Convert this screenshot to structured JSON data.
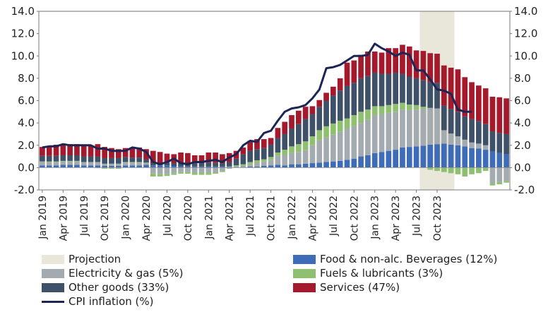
{
  "chart_data": {
    "type": "stacked-bar-with-line",
    "title": "",
    "ylim": [
      -2,
      14
    ],
    "yticks": [
      "14.0",
      "12.0",
      "10.0",
      "8.0",
      "6.0",
      "4.0",
      "2.0",
      "0.0",
      "-2.0"
    ],
    "y2ticks": [
      "14.0",
      "12.0",
      "10.0",
      "8.0",
      "6.0",
      "4.0",
      "2.0",
      "0.0",
      "-2.0"
    ],
    "start": "Jan 2019",
    "x_tick_labels": [
      "Jan 2019",
      "Apr 2019",
      "Jul 2019",
      "Oct 2019",
      "Jan 2020",
      "Apr 2020",
      "Jul 2020",
      "Oct 2020",
      "Jan 2021",
      "Apr 2021",
      "Jul 2021",
      "Oct 2021",
      "Jan 2022",
      "Apr 2022",
      "Jul 2022",
      "Oct 2022",
      "Jan 2023",
      "Apr 2023",
      "Jul 2023",
      "Oct 2023"
    ],
    "projection": {
      "label": "Projection",
      "start_index": 55,
      "end_index": 59
    },
    "series": [
      {
        "name": "Food & non-alc. Beverages (12%)",
        "color": "#3f6cb8",
        "values": [
          0.2,
          0.2,
          0.2,
          0.25,
          0.25,
          0.25,
          0.2,
          0.2,
          0.2,
          0.15,
          0.15,
          0.15,
          0.2,
          0.2,
          0.2,
          0.25,
          0.2,
          0.2,
          0.2,
          0.15,
          0.15,
          0.1,
          0.1,
          0.1,
          0.1,
          0.1,
          0.1,
          0.05,
          0.05,
          0.05,
          0.1,
          0.1,
          0.15,
          0.2,
          0.25,
          0.2,
          0.3,
          0.3,
          0.35,
          0.4,
          0.45,
          0.5,
          0.55,
          0.6,
          0.7,
          0.8,
          1.0,
          1.1,
          1.3,
          1.4,
          1.5,
          1.6,
          1.8,
          1.85,
          1.9,
          1.95,
          2.05,
          2.1,
          2.15,
          2.05,
          2.0,
          1.9,
          1.75,
          1.7,
          1.6,
          1.45,
          1.3,
          1.2
        ]
      },
      {
        "name": "Electricity & gas (5%)",
        "color": "#a3aab0",
        "values": [
          0.3,
          0.3,
          0.3,
          0.3,
          0.3,
          0.3,
          0.3,
          0.3,
          0.3,
          0.2,
          0.2,
          0.2,
          0.25,
          0.25,
          0.25,
          0.2,
          -0.5,
          -0.6,
          -0.6,
          -0.5,
          -0.4,
          -0.4,
          -0.45,
          -0.45,
          -0.45,
          -0.45,
          -0.3,
          -0.1,
          0.05,
          0.1,
          0.2,
          0.3,
          0.4,
          0.5,
          0.8,
          0.9,
          1.0,
          1.1,
          1.2,
          1.6,
          2.0,
          2.2,
          2.4,
          2.6,
          2.8,
          2.9,
          3.0,
          3.2,
          3.4,
          3.4,
          3.4,
          3.4,
          3.4,
          3.3,
          3.3,
          3.3,
          3.3,
          3.2,
          1.2,
          1.0,
          0.8,
          0.6,
          0.5,
          0.45,
          0.4,
          -1.4,
          -1.3,
          -1.2
        ]
      },
      {
        "name": "Fuels & lubricants (3%)",
        "color": "#8fc06f",
        "values": [
          0.05,
          0.05,
          0.05,
          0.05,
          0.05,
          0.05,
          0.0,
          0.0,
          -0.05,
          -0.1,
          -0.1,
          -0.1,
          0.05,
          0.05,
          0.05,
          0.0,
          -0.3,
          -0.2,
          -0.15,
          -0.15,
          -0.15,
          -0.15,
          -0.2,
          -0.2,
          -0.2,
          -0.1,
          -0.1,
          0.05,
          0.1,
          0.15,
          0.2,
          0.25,
          0.2,
          0.25,
          0.3,
          0.5,
          0.6,
          0.7,
          0.8,
          0.8,
          0.9,
          1.0,
          1.0,
          1.0,
          0.9,
          1.0,
          1.0,
          0.9,
          0.8,
          0.7,
          0.7,
          0.7,
          0.6,
          0.5,
          0.4,
          0.2,
          -0.2,
          -0.3,
          -0.4,
          -0.5,
          -0.6,
          -0.8,
          -0.6,
          -0.5,
          -0.3,
          -0.2,
          -0.2,
          -0.15
        ]
      },
      {
        "name": "Other goods (33%)",
        "color": "#3f5069",
        "values": [
          0.5,
          0.5,
          0.5,
          0.5,
          0.5,
          0.5,
          0.5,
          0.5,
          0.5,
          0.5,
          0.5,
          0.5,
          0.45,
          0.4,
          0.4,
          0.3,
          0.2,
          0.2,
          0.25,
          0.25,
          0.3,
          0.3,
          0.3,
          0.3,
          0.35,
          0.35,
          0.3,
          0.4,
          0.6,
          0.9,
          1.0,
          1.0,
          1.0,
          1.1,
          1.3,
          1.4,
          1.6,
          1.8,
          2.0,
          2.0,
          2.1,
          2.3,
          2.5,
          2.7,
          2.9,
          2.9,
          3.0,
          3.0,
          3.0,
          2.9,
          2.8,
          2.8,
          2.6,
          2.5,
          2.4,
          2.4,
          2.3,
          2.3,
          2.2,
          2.2,
          2.2,
          2.1,
          2.1,
          2.0,
          1.9,
          1.8,
          1.8,
          1.8
        ]
      },
      {
        "name": "Services (47%)",
        "color": "#a4192c",
        "values": [
          0.8,
          0.9,
          1.0,
          1.0,
          1.0,
          1.0,
          1.0,
          1.0,
          1.1,
          1.0,
          0.9,
          0.8,
          0.8,
          0.8,
          0.9,
          0.9,
          1.1,
          1.0,
          0.8,
          0.8,
          0.9,
          0.9,
          0.7,
          0.7,
          0.9,
          0.9,
          0.8,
          0.8,
          0.7,
          0.6,
          0.9,
          0.9,
          0.8,
          0.6,
          0.9,
          1.1,
          1.2,
          1.2,
          1.1,
          0.7,
          0.6,
          0.7,
          0.8,
          1.1,
          2.1,
          2.0,
          2.1,
          2.2,
          1.9,
          1.9,
          2.3,
          2.2,
          2.6,
          2.7,
          2.5,
          2.6,
          2.6,
          2.6,
          3.6,
          3.7,
          3.8,
          3.5,
          3.3,
          3.2,
          3.2,
          3.1,
          3.2,
          3.2
        ]
      }
    ],
    "line": {
      "name": "CPI inflation (%)",
      "color": "#1d2557",
      "values": [
        1.8,
        1.9,
        1.9,
        2.1,
        2.0,
        2.0,
        2.0,
        2.0,
        1.7,
        1.7,
        1.5,
        1.5,
        1.5,
        1.8,
        1.7,
        1.4,
        0.5,
        0.3,
        0.5,
        0.8,
        0.4,
        0.3,
        0.5,
        0.5,
        0.6,
        0.7,
        0.5,
        0.9,
        1.2,
        2.0,
        2.4,
        2.3,
        3.1,
        3.3,
        4.2,
        5.0,
        5.3,
        5.4,
        5.6,
        6.2,
        7.0,
        8.9,
        9.0,
        9.2,
        9.6,
        10.0,
        10.0,
        10.1,
        11.1,
        10.7,
        10.4,
        10.0,
        10.3,
        10.1,
        8.7,
        8.7,
        7.9,
        7.0,
        6.9,
        6.6,
        5.2,
        5.0,
        5.0
      ]
    }
  },
  "legend": {
    "projection": "Projection",
    "food": "Food & non-alc. Beverages (12%)",
    "electricity": "Electricity & gas (5%)",
    "fuels": "Fuels & lubricants (3%)",
    "other": "Other goods (33%)",
    "services": "Services (47%)",
    "cpi": "CPI inflation (%)"
  },
  "colors": {
    "projection": "#e9e6da",
    "axis": "#555555"
  }
}
